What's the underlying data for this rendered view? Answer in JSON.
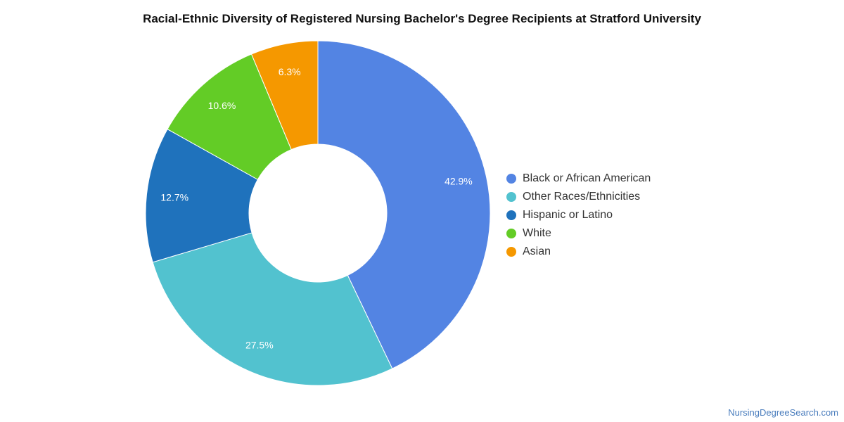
{
  "chart_data": {
    "type": "pie",
    "variant": "donut",
    "title": "Racial-Ethnic Diversity of Registered Nursing Bachelor's Degree Recipients at Stratford University",
    "slices": [
      {
        "label": "Black or African American",
        "value": 42.9,
        "display": "42.9%",
        "color": "#5384e3"
      },
      {
        "label": "Other Races/Ethnicities",
        "value": 27.5,
        "display": "27.5%",
        "color": "#52c2cf"
      },
      {
        "label": "Hispanic or Latino",
        "value": 12.7,
        "display": "12.7%",
        "color": "#1f72bc"
      },
      {
        "label": "White",
        "value": 10.6,
        "display": "10.6%",
        "color": "#63cc26"
      },
      {
        "label": "Asian",
        "value": 6.3,
        "display": "6.3%",
        "color": "#f59800"
      }
    ],
    "legend": "right"
  },
  "footer": {
    "source": "NursingDegreeSearch.com"
  }
}
